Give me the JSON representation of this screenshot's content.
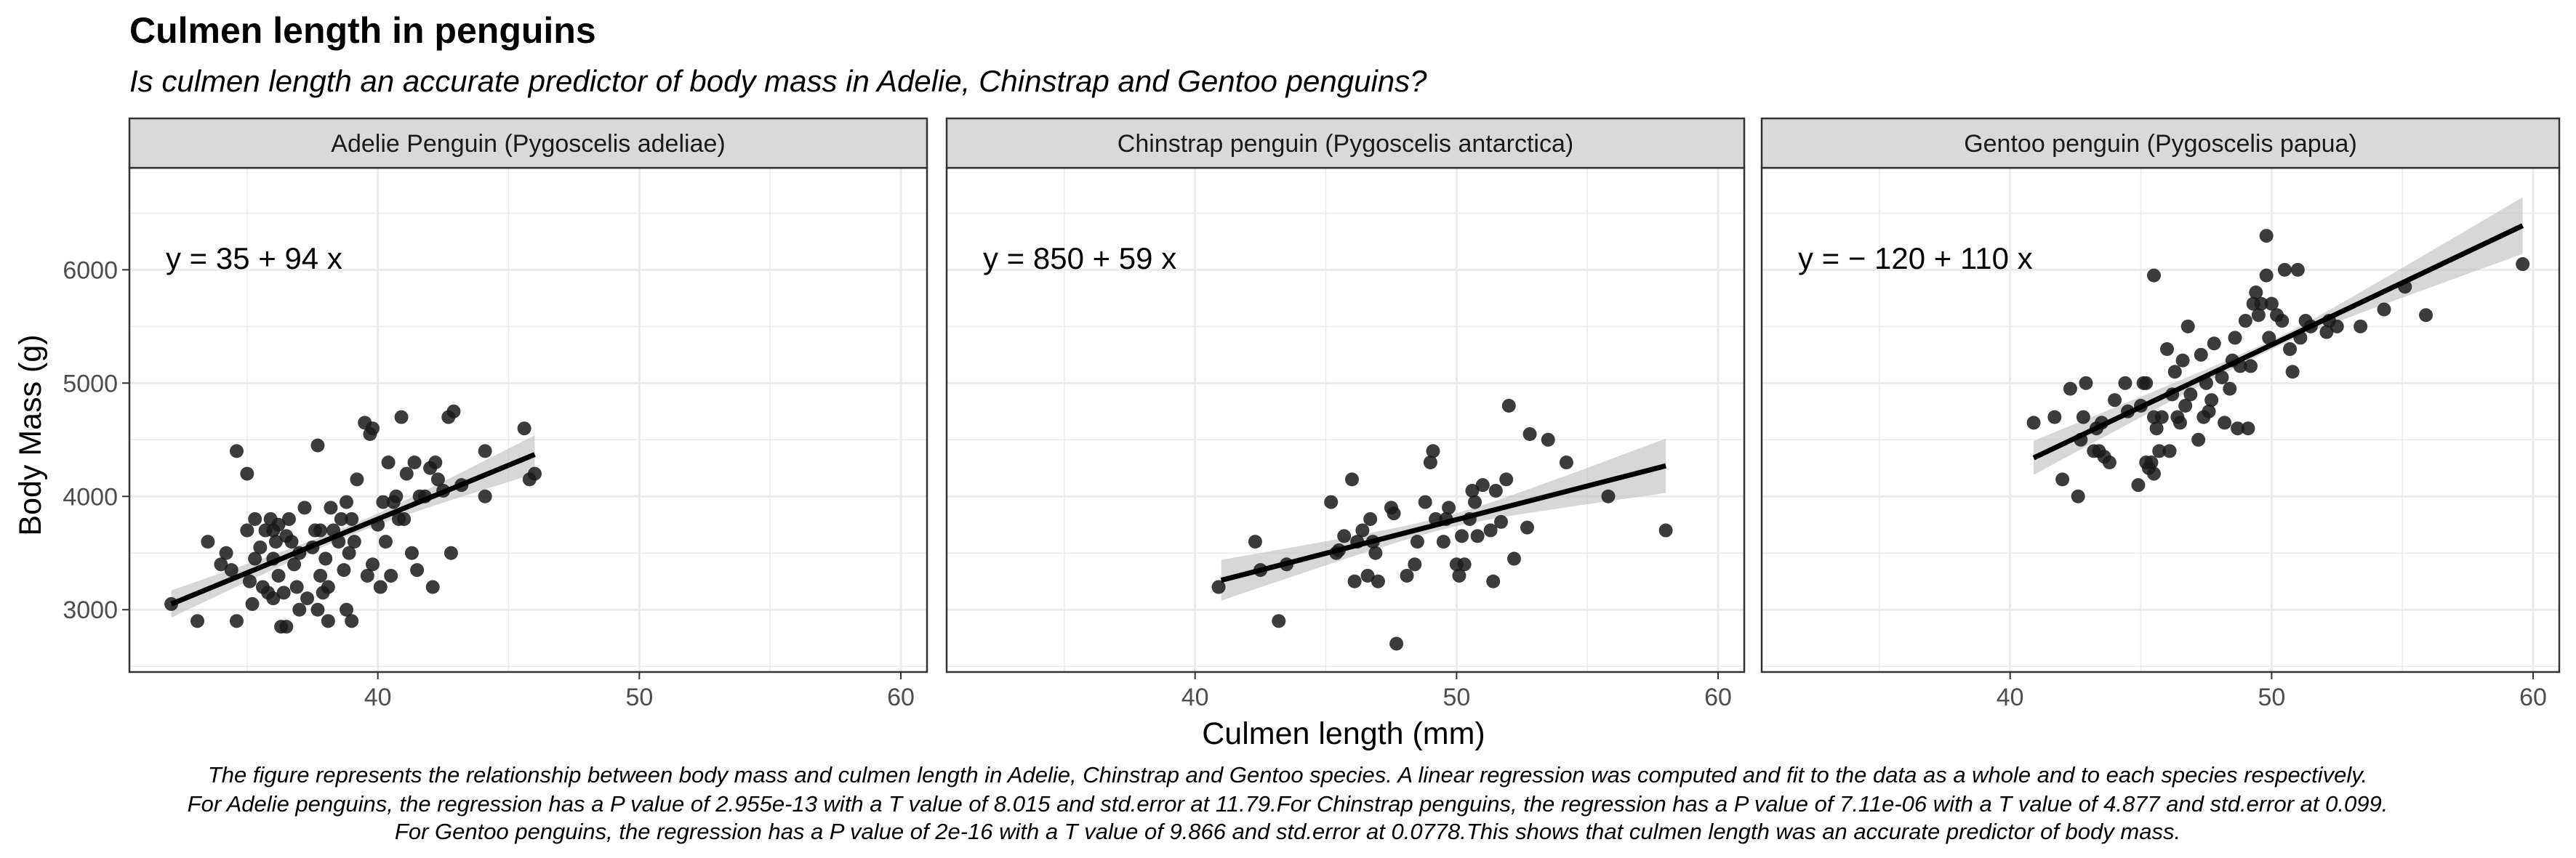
{
  "title": "Culmen length in penguins",
  "subtitle": "Is culmen length an accurate predictor of body mass in Adelie, Chinstrap and Gentoo penguins?",
  "caption": [
    "The figure represents the relationship between body mass and culmen length in Adelie, Chinstrap and Gentoo species. A linear regression was computed and fit to the data as a whole and to each species respectively.",
    "For Adelie penguins, the regression has a P value of 2.955e-13 with a T value of 8.015 and std.error at 11.79.For Chinstrap penguins, the regression has a P value of 7.11e-06 with a T value of 4.877 and std.error at 0.099.",
    "For Gentoo penguins, the regression has a P value of 2e-16 with a T value of 9.866 and std.error at 0.0778.This shows that culmen length was an accurate predictor of body mass."
  ],
  "colors": {
    "point": "#1a1a1a",
    "line": "#000000",
    "band": "#bdbdbd",
    "strip_bg": "#d9d9d9",
    "grid": "#ebebeb"
  },
  "chart_data": {
    "type": "scatter",
    "xlabel": "Culmen length (mm)",
    "ylabel": "Body Mass (g)",
    "xlim": [
      30.5,
      61
    ],
    "ylim": [
      2450,
      6900
    ],
    "x_ticks": [
      40,
      50,
      60
    ],
    "x_tick_labels": [
      "40",
      "50",
      "60"
    ],
    "y_ticks": [
      3000,
      4000,
      5000,
      6000
    ],
    "y_tick_labels": [
      "3000",
      "4000",
      "5000",
      "6000"
    ],
    "panels": [
      {
        "label": "Adelie Penguin (Pygoscelis adeliae)",
        "equation": "y = 35 + 94 x",
        "fit": {
          "x": [
            32.1,
            46.0
          ],
          "y": [
            3050,
            4370
          ],
          "band_half_width_ends": [
            120,
            170
          ],
          "band_half_width_mid": 45
        },
        "points": [
          [
            32.1,
            3050
          ],
          [
            33.1,
            2900
          ],
          [
            33.5,
            3600
          ],
          [
            34.0,
            3400
          ],
          [
            34.2,
            3500
          ],
          [
            34.4,
            3350
          ],
          [
            34.6,
            4400
          ],
          [
            34.6,
            2900
          ],
          [
            35.0,
            4200
          ],
          [
            35.0,
            3700
          ],
          [
            35.1,
            3250
          ],
          [
            35.2,
            3050
          ],
          [
            35.3,
            3450
          ],
          [
            35.3,
            3800
          ],
          [
            35.5,
            3550
          ],
          [
            35.6,
            3200
          ],
          [
            35.7,
            3700
          ],
          [
            35.8,
            3150
          ],
          [
            35.9,
            3800
          ],
          [
            36.0,
            3100
          ],
          [
            36.0,
            3450
          ],
          [
            36.0,
            3700
          ],
          [
            36.1,
            3600
          ],
          [
            36.2,
            3300
          ],
          [
            36.2,
            3750
          ],
          [
            36.3,
            2850
          ],
          [
            36.4,
            3150
          ],
          [
            36.5,
            2850
          ],
          [
            36.5,
            3650
          ],
          [
            36.6,
            3800
          ],
          [
            36.7,
            3600
          ],
          [
            36.8,
            3400
          ],
          [
            36.9,
            3200
          ],
          [
            37.0,
            3500
          ],
          [
            37.0,
            3000
          ],
          [
            37.2,
            3900
          ],
          [
            37.3,
            3100
          ],
          [
            37.5,
            3550
          ],
          [
            37.6,
            3700
          ],
          [
            37.7,
            4450
          ],
          [
            37.7,
            3000
          ],
          [
            37.8,
            3700
          ],
          [
            37.8,
            3300
          ],
          [
            37.9,
            3150
          ],
          [
            38.0,
            3450
          ],
          [
            38.1,
            2900
          ],
          [
            38.1,
            3200
          ],
          [
            38.2,
            3900
          ],
          [
            38.3,
            3700
          ],
          [
            38.5,
            3600
          ],
          [
            38.6,
            3800
          ],
          [
            38.7,
            3350
          ],
          [
            38.8,
            3950
          ],
          [
            38.8,
            3000
          ],
          [
            38.9,
            3500
          ],
          [
            39.0,
            2900
          ],
          [
            39.0,
            3800
          ],
          [
            39.1,
            3600
          ],
          [
            39.2,
            4150
          ],
          [
            39.5,
            4650
          ],
          [
            39.6,
            3300
          ],
          [
            39.7,
            4550
          ],
          [
            39.8,
            3400
          ],
          [
            39.8,
            4600
          ],
          [
            40.0,
            3750
          ],
          [
            40.1,
            3200
          ],
          [
            40.2,
            3950
          ],
          [
            40.3,
            3600
          ],
          [
            40.4,
            4300
          ],
          [
            40.5,
            3300
          ],
          [
            40.6,
            3950
          ],
          [
            40.7,
            4000
          ],
          [
            40.8,
            3800
          ],
          [
            40.9,
            4700
          ],
          [
            41.0,
            3800
          ],
          [
            41.1,
            4200
          ],
          [
            41.3,
            3500
          ],
          [
            41.4,
            4300
          ],
          [
            41.5,
            3350
          ],
          [
            41.6,
            4000
          ],
          [
            41.8,
            4000
          ],
          [
            42.0,
            4250
          ],
          [
            42.1,
            3200
          ],
          [
            42.2,
            4300
          ],
          [
            42.3,
            4150
          ],
          [
            42.5,
            4050
          ],
          [
            42.7,
            4700
          ],
          [
            42.8,
            3500
          ],
          [
            42.9,
            4750
          ],
          [
            43.2,
            4100
          ],
          [
            44.1,
            4400
          ],
          [
            44.1,
            4000
          ],
          [
            45.6,
            4600
          ],
          [
            45.8,
            4150
          ],
          [
            46.0,
            4200
          ]
        ]
      },
      {
        "label": "Chinstrap penguin (Pygoscelis antarctica)",
        "equation": "y = 850 + 59 x",
        "fit": {
          "x": [
            41.0,
            58.0
          ],
          "y": [
            3260,
            4270
          ],
          "band_half_width_ends": [
            180,
            240
          ],
          "band_half_width_mid": 55
        },
        "points": [
          [
            40.9,
            3200
          ],
          [
            42.3,
            3600
          ],
          [
            42.5,
            3350
          ],
          [
            43.2,
            2900
          ],
          [
            43.5,
            3400
          ],
          [
            45.2,
            3950
          ],
          [
            45.4,
            3500
          ],
          [
            45.5,
            3525
          ],
          [
            45.7,
            3650
          ],
          [
            46.0,
            4150
          ],
          [
            46.1,
            3250
          ],
          [
            46.2,
            3600
          ],
          [
            46.4,
            3700
          ],
          [
            46.6,
            3300
          ],
          [
            46.7,
            3800
          ],
          [
            46.8,
            3600
          ],
          [
            46.9,
            3500
          ],
          [
            47.0,
            3250
          ],
          [
            47.5,
            3900
          ],
          [
            47.6,
            3850
          ],
          [
            47.7,
            2700
          ],
          [
            48.1,
            3300
          ],
          [
            48.4,
            3400
          ],
          [
            48.5,
            3600
          ],
          [
            48.8,
            3950
          ],
          [
            49.0,
            4300
          ],
          [
            49.1,
            4400
          ],
          [
            49.2,
            3800
          ],
          [
            49.5,
            3600
          ],
          [
            49.6,
            3800
          ],
          [
            49.7,
            3900
          ],
          [
            50.0,
            3400
          ],
          [
            50.1,
            3300
          ],
          [
            50.2,
            3650
          ],
          [
            50.3,
            3400
          ],
          [
            50.5,
            3800
          ],
          [
            50.6,
            4050
          ],
          [
            50.7,
            3950
          ],
          [
            50.8,
            3650
          ],
          [
            51.0,
            4100
          ],
          [
            51.3,
            3700
          ],
          [
            51.4,
            3250
          ],
          [
            51.5,
            4050
          ],
          [
            51.7,
            3775
          ],
          [
            51.9,
            4150
          ],
          [
            52.0,
            4800
          ],
          [
            52.2,
            3450
          ],
          [
            52.7,
            3725
          ],
          [
            52.8,
            4550
          ],
          [
            53.5,
            4500
          ],
          [
            54.2,
            4300
          ],
          [
            55.8,
            4000
          ],
          [
            58.0,
            3700
          ]
        ]
      },
      {
        "label": "Gentoo penguin (Pygoscelis papua)",
        "equation": "y = − 120 + 110 x",
        "fit": {
          "x": [
            40.9,
            59.6
          ],
          "y": [
            4340,
            6390
          ],
          "band_half_width_ends": [
            150,
            250
          ],
          "band_half_width_mid": 40
        },
        "points": [
          [
            40.9,
            4650
          ],
          [
            41.7,
            4700
          ],
          [
            42.0,
            4150
          ],
          [
            42.3,
            4950
          ],
          [
            42.6,
            4000
          ],
          [
            42.7,
            4500
          ],
          [
            42.8,
            4700
          ],
          [
            42.9,
            5000
          ],
          [
            43.2,
            4400
          ],
          [
            43.3,
            4600
          ],
          [
            43.4,
            4400
          ],
          [
            43.5,
            4650
          ],
          [
            43.6,
            4350
          ],
          [
            43.8,
            4300
          ],
          [
            44.0,
            4850
          ],
          [
            44.4,
            5000
          ],
          [
            44.5,
            4750
          ],
          [
            44.9,
            4100
          ],
          [
            45.0,
            4800
          ],
          [
            45.1,
            5000
          ],
          [
            45.2,
            4300
          ],
          [
            45.2,
            5000
          ],
          [
            45.3,
            4250
          ],
          [
            45.4,
            4300
          ],
          [
            45.5,
            4700
          ],
          [
            45.5,
            4200
          ],
          [
            45.5,
            5950
          ],
          [
            45.6,
            4600
          ],
          [
            45.7,
            4400
          ],
          [
            45.8,
            4700
          ],
          [
            46.0,
            5300
          ],
          [
            46.1,
            4400
          ],
          [
            46.2,
            4900
          ],
          [
            46.3,
            5100
          ],
          [
            46.4,
            4700
          ],
          [
            46.5,
            4650
          ],
          [
            46.6,
            5200
          ],
          [
            46.7,
            4800
          ],
          [
            46.8,
            5500
          ],
          [
            46.9,
            4900
          ],
          [
            47.2,
            4500
          ],
          [
            47.3,
            5250
          ],
          [
            47.4,
            4700
          ],
          [
            47.5,
            5000
          ],
          [
            47.6,
            4750
          ],
          [
            47.7,
            4850
          ],
          [
            47.8,
            5350
          ],
          [
            48.1,
            5050
          ],
          [
            48.2,
            4650
          ],
          [
            48.4,
            4950
          ],
          [
            48.5,
            5200
          ],
          [
            48.6,
            5400
          ],
          [
            48.7,
            4600
          ],
          [
            48.8,
            5150
          ],
          [
            49.0,
            5550
          ],
          [
            49.1,
            4600
          ],
          [
            49.2,
            5150
          ],
          [
            49.3,
            5700
          ],
          [
            49.4,
            5800
          ],
          [
            49.5,
            5600
          ],
          [
            49.6,
            5700
          ],
          [
            49.8,
            5950
          ],
          [
            49.9,
            5400
          ],
          [
            50.0,
            5700
          ],
          [
            50.2,
            5600
          ],
          [
            50.4,
            5550
          ],
          [
            50.5,
            6000
          ],
          [
            50.7,
            5300
          ],
          [
            50.8,
            5100
          ],
          [
            51.0,
            6000
          ],
          [
            51.1,
            5400
          ],
          [
            51.3,
            5550
          ],
          [
            51.5,
            5500
          ],
          [
            52.1,
            5450
          ],
          [
            52.2,
            5550
          ],
          [
            52.5,
            5500
          ],
          [
            53.4,
            5500
          ],
          [
            54.3,
            5650
          ],
          [
            55.1,
            5850
          ],
          [
            55.9,
            5600
          ],
          [
            49.8,
            6300
          ],
          [
            59.6,
            6050
          ]
        ]
      }
    ]
  }
}
